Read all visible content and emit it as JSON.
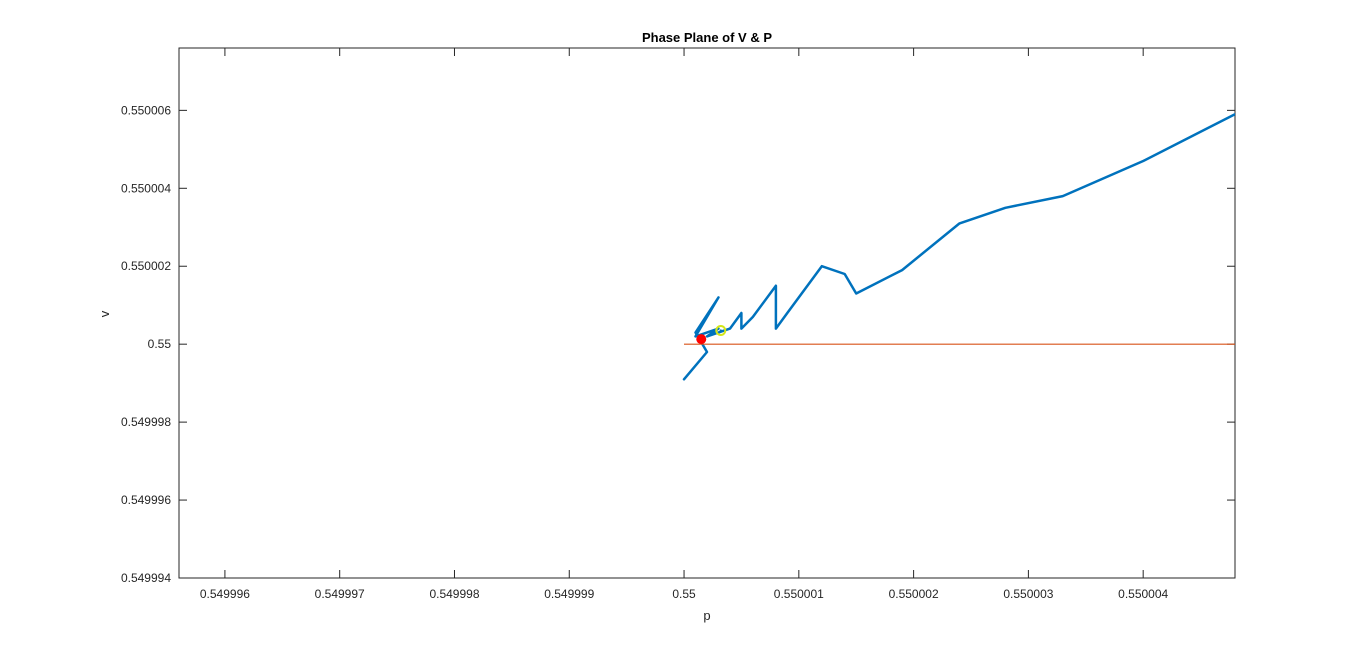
{
  "chart_data": {
    "type": "line",
    "title": "Phase Plane of V & P",
    "xlabel": "p",
    "ylabel": "v",
    "xlim": [
      0.5499956,
      0.5500048
    ],
    "ylim": [
      0.549994,
      0.5500076
    ],
    "xticks": [
      0.549996,
      0.549997,
      0.549998,
      0.549999,
      0.55,
      0.550001,
      0.550002,
      0.550003,
      0.550004
    ],
    "xticklabels": [
      "0.549996",
      "0.549997",
      "0.549998",
      "0.549999",
      "0.55",
      "0.550001",
      "0.550002",
      "0.550003",
      "0.550004"
    ],
    "yticks": [
      0.549994,
      0.549996,
      0.549998,
      0.55,
      0.550002,
      0.550004,
      0.550006
    ],
    "yticklabels": [
      "0.549994",
      "0.549996",
      "0.549998",
      "0.55",
      "0.550002",
      "0.550004",
      "0.550006"
    ],
    "grid": false,
    "colors": {
      "trajectory": "#0072bd",
      "reference": "#d95319",
      "start": "#ff0000",
      "end": "#d4e619"
    },
    "series": [
      {
        "kind": "trajectory",
        "x": [
          0.55,
          0.5500002,
          0.5500001,
          0.5500003,
          0.5500001,
          0.5500003,
          0.5500002,
          0.5500004,
          0.5500005,
          0.5500005,
          0.5500006,
          0.5500008,
          0.5500008,
          0.5500008,
          0.5500009,
          0.5500012,
          0.5500014,
          0.5500015,
          0.5500019,
          0.5500024,
          0.5500028,
          0.5500033,
          0.550004,
          0.5500048
        ],
        "y": [
          0.5499991,
          0.5499998,
          0.5500003,
          0.5500012,
          0.5500002,
          0.5500004,
          0.5500002,
          0.5500004,
          0.5500008,
          0.5500004,
          0.5500007,
          0.5500015,
          0.5500011,
          0.5500004,
          0.5500008,
          0.550002,
          0.5500018,
          0.5500013,
          0.5500019,
          0.5500031,
          0.5500035,
          0.5500038,
          0.5500047,
          0.5500059
        ]
      },
      {
        "kind": "reference",
        "x": [
          0.55,
          0.5500048
        ],
        "y": [
          0.55,
          0.55
        ]
      },
      {
        "kind": "start-marker",
        "x": [
          0.55000015
        ],
        "y": [
          0.55000013
        ]
      },
      {
        "kind": "end-marker",
        "x": [
          0.55000032
        ],
        "y": [
          0.55000035
        ]
      }
    ]
  }
}
